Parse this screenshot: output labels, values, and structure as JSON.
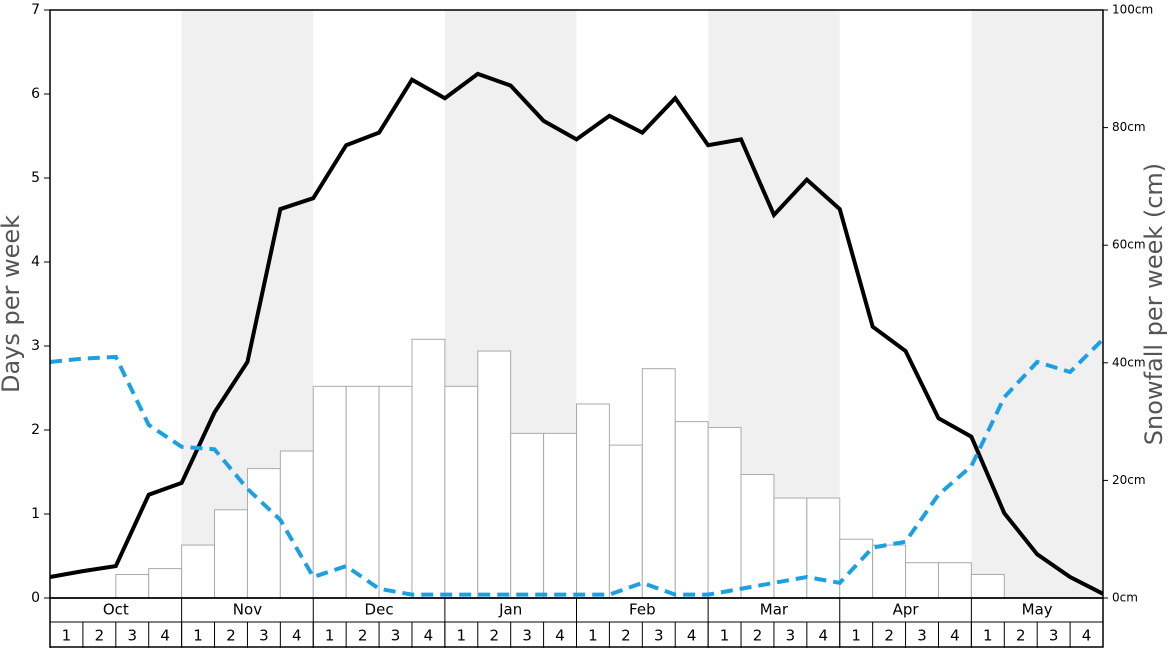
{
  "chart_data": {
    "type": "bar",
    "y_label": "Days per week",
    "y2_label": "Snowfall per week (cm)",
    "months": [
      "Oct",
      "Nov",
      "Dec",
      "Jan",
      "Feb",
      "Mar",
      "Apr",
      "May"
    ],
    "categories": [
      "1",
      "2",
      "3",
      "4",
      "1",
      "2",
      "3",
      "4",
      "1",
      "2",
      "3",
      "4",
      "1",
      "2",
      "3",
      "4",
      "1",
      "2",
      "3",
      "4",
      "1",
      "2",
      "3",
      "4",
      "1",
      "2",
      "3",
      "4",
      "1",
      "2",
      "3",
      "4"
    ],
    "bar_series": {
      "axis": "y2",
      "color": "#ffffff",
      "values": [
        0,
        0,
        4,
        5,
        9,
        15,
        22,
        25,
        36,
        36,
        36,
        44,
        36,
        42,
        28,
        28,
        33,
        26,
        39,
        30,
        29,
        21,
        17,
        17,
        10,
        9,
        6,
        6,
        4,
        0,
        0,
        0
      ]
    },
    "line_series": [
      {
        "color": "#000000",
        "dash": false,
        "values": [
          0.25,
          0.32,
          0.38,
          1.23,
          1.37,
          2.21,
          2.81,
          4.63,
          4.76,
          5.39,
          5.54,
          6.17,
          5.95,
          6.24,
          6.1,
          5.68,
          5.46,
          5.74,
          5.54,
          5.95,
          5.39,
          5.46,
          4.56,
          4.98,
          4.63,
          3.23,
          2.94,
          2.14,
          1.92,
          1.01,
          0.52,
          0.25,
          0.05
        ]
      },
      {
        "color": "#1ba1e2",
        "dash": true,
        "values": [
          2.81,
          2.85,
          2.87,
          2.06,
          1.8,
          1.77,
          1.3,
          0.93,
          0.25,
          0.38,
          0.11,
          0.04,
          0.04,
          0.04,
          0.04,
          0.04,
          0.04,
          0.04,
          0.18,
          0.04,
          0.04,
          0.11,
          0.18,
          0.25,
          0.18,
          0.6,
          0.67,
          1.23,
          1.57,
          2.39,
          2.81,
          2.69,
          3.08
        ]
      }
    ],
    "ylim": [
      0,
      7
    ],
    "yticks": [
      0,
      1,
      2,
      3,
      4,
      5,
      6,
      7
    ],
    "y2lim": [
      0,
      100
    ],
    "y2ticks": [
      {
        "value": 0,
        "label": "0cm"
      },
      {
        "value": 20,
        "label": "20cm"
      },
      {
        "value": 40,
        "label": "40cm"
      },
      {
        "value": 60,
        "label": "60cm"
      },
      {
        "value": 80,
        "label": "80cm"
      },
      {
        "value": 100,
        "label": "100cm"
      }
    ]
  }
}
